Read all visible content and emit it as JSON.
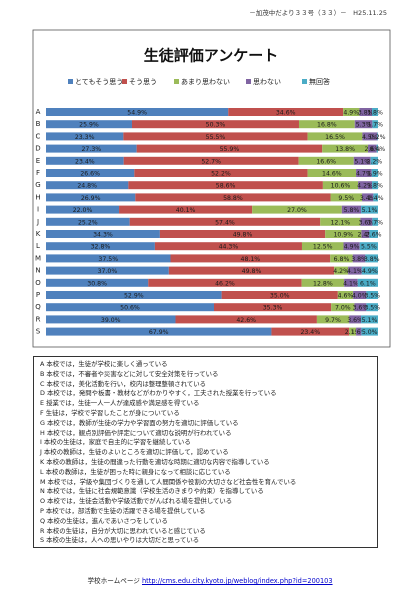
{
  "header": "－加茂中だより３３号（３３）－　H25.11.25",
  "chart_data": {
    "type": "stacked-bar",
    "orientation": "horizontal",
    "title": "生徒評価アンケート",
    "categories": [
      "A",
      "B",
      "C",
      "D",
      "E",
      "F",
      "G",
      "H",
      "I",
      "J",
      "K",
      "L",
      "M",
      "N",
      "O",
      "P",
      "Q",
      "R",
      "S"
    ],
    "series": [
      {
        "name": "とてもそう思う",
        "color": "#4f81bd",
        "values": [
          54.9,
          25.9,
          23.3,
          27.3,
          23.4,
          26.6,
          24.8,
          26.9,
          22.0,
          25.2,
          34.3,
          32.8,
          37.5,
          37.0,
          30.8,
          52.9,
          50.6,
          39.0,
          67.9
        ],
        "value_labels": [
          "54.9%",
          "25.9%",
          "23.3%",
          "27.3%",
          "23.4%",
          "26.6%",
          "24.8%",
          "26.9%",
          "22.0%",
          "25.2%",
          "34.3%",
          "32.8%",
          "37.5%",
          "37.0%",
          "30.8%",
          "52.9%",
          "50.6%",
          "39.0%",
          "67.9%"
        ]
      },
      {
        "name": "そう思う",
        "color": "#c0504d",
        "values": [
          34.6,
          50.3,
          55.5,
          55.9,
          52.7,
          52.2,
          58.6,
          58.8,
          40.1,
          57.4,
          49.8,
          44.3,
          48.1,
          49.8,
          46.2,
          35.0,
          35.3,
          42.6,
          23.4
        ],
        "value_labels": [
          "34.6%",
          "50.3%",
          "55.5%",
          "55.9%",
          "52.7%",
          "52.2%",
          "58.6%",
          "58.8%",
          "40.1%",
          "57.4%",
          "49.8%",
          "44.3%",
          "48.1%",
          "49.8%",
          "46.2%",
          "35.0%",
          "35.3%",
          "42.6%",
          "23.4%"
        ]
      },
      {
        "name": "あまり思わない",
        "color": "#9bbb59",
        "values": [
          4.9,
          16.8,
          16.5,
          13.8,
          16.6,
          14.6,
          10.6,
          9.5,
          27.0,
          12.1,
          10.9,
          12.5,
          6.8,
          4.2,
          12.8,
          4.6,
          7.0,
          9.7,
          2.1
        ],
        "value_labels": [
          "4.9%",
          "16.8%",
          "16.5%",
          "13.8%",
          "16.6%",
          "14.6%",
          "10.6%",
          "9.5%",
          "27.0%",
          "12.1%",
          "10.9%",
          "12.5%",
          "6.8%",
          "4.2%",
          "12.8%",
          "4.6%",
          "7.0%",
          "9.7%",
          "2.1%"
        ]
      },
      {
        "name": "思わない",
        "color": "#8064a2",
        "values": [
          3.8,
          5.3,
          4.5,
          2.6,
          5.1,
          4.7,
          4.2,
          3.4,
          5.8,
          3.6,
          2.4,
          4.9,
          3.8,
          4.1,
          4.1,
          4.0,
          3.6,
          3.6,
          1.6
        ],
        "value_labels": [
          "3.8%",
          "5.3%",
          "4.5%",
          "2.6%",
          "5.1%",
          "4.7%",
          "4.2%",
          "3.4%",
          "5.8%",
          "3.6%",
          "2.4%",
          "4.9%",
          "3.8%",
          "4.1%",
          "4.1%",
          "4.0%",
          "3.6%",
          "3.6%",
          "1.6%"
        ]
      },
      {
        "name": "無回答",
        "color": "#4bacc6",
        "values": [
          1.8,
          1.7,
          0.2,
          0.4,
          2.2,
          1.9,
          1.8,
          1.4,
          5.1,
          1.7,
          2.6,
          5.5,
          3.8,
          4.9,
          6.1,
          3.5,
          3.5,
          5.1,
          5.0
        ],
        "value_labels": [
          "1.8%",
          "1.7%",
          "0.2%",
          "0.4%",
          "2.2%",
          "1.9%",
          "1.8%",
          "1.4%",
          "5.1%",
          "1.7%",
          "2.6%",
          "5.5%",
          "3.8%",
          "4.9%",
          "6.1%",
          "3.5%",
          "3.5%",
          "5.1%",
          "5.0%"
        ]
      }
    ]
  },
  "statements": [
    "A 本校では，生徒が学校に楽しく通っている",
    "B 本校では，不審者や災害などに対して安全対策を行っている",
    "C 本校では，美化活動を行い，校内は整理整頓されている",
    "D 本校では，発問や板書・教材などがわかりやすく，工夫された授業を行っている",
    "E 授業では，生徒一人一人が達成感や満足感を得ている",
    "F 生徒は，学校で学習したことが身についている",
    "G 本校では，教師が生徒の学力や学習面の努力を適切に評価している",
    "H 本校では，観点別評価や評定について適切な説明が行われている",
    "I 本校の生徒は，家庭で自主的に学習を継続している",
    "J 本校の教師は，生徒のよいところを適切に評価して，認めている",
    "K 本校の教師は，生徒の間違った行動を適切な時期に適切な内容で指導している",
    "L 本校の教師は，生徒が困った時に親身になって相談に応じている",
    "M 本校では，学級や集団づくりを通して人間関係や役割の大切さなど社会性を育んでいる",
    "N 本校では，生徒に社会規範意識（学校生活のきまりや約束）を指導している",
    "O 本校では，生徒会活動や学級活動でがんばれる場を提供している",
    "P 本校では，部活動で生徒の活躍できる場を提供している",
    "Q 本校の生徒は，進んであいさつをしている",
    "R 本校の生徒は，自分が大切に思われていると感じている",
    "S 本校の生徒は，人への思いやりは大切だと思っている"
  ],
  "footer": {
    "label": "学校ホームページ",
    "url": "http://cms.edu.city.kyoto.jp/weblog/index.php?id=200103"
  }
}
